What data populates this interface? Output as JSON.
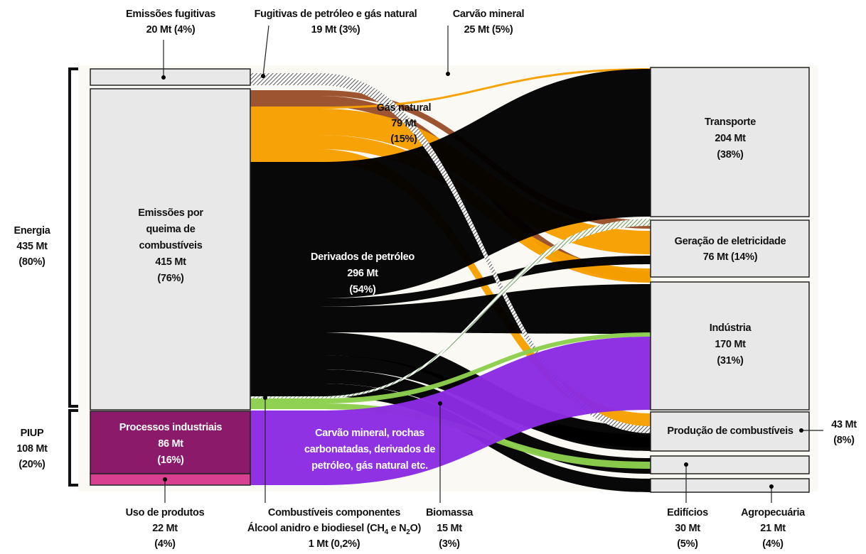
{
  "groups": {
    "energia": [
      "Energia",
      "435 Mt",
      "(80%)"
    ],
    "piup": [
      "PIUP",
      "108 Mt",
      "(20%)"
    ]
  },
  "sources": {
    "emissoes_fugitivas": [
      "Emissões fugitivas",
      "20 Mt  (4%)"
    ],
    "queima": [
      "Emissões por",
      "queima de",
      "combustíveis",
      "415 Mt",
      "(76%)"
    ],
    "processos": [
      "Processos industriais",
      "86 Mt",
      "(16%)"
    ],
    "uso_produtos": [
      "Uso de produtos",
      "22 Mt",
      "(4%)"
    ]
  },
  "fuels": {
    "fugitivas_petroleo": [
      "Fugitivas de petróleo e gás natural",
      "19 Mt (3%)"
    ],
    "carvao": [
      "Carvão mineral",
      "25 Mt (5%)"
    ],
    "gas": [
      "Gás natural",
      "79 Mt",
      "(15%)"
    ],
    "derivados": [
      "Derivados de petróleo",
      "296 Mt",
      "(54%)"
    ],
    "componentes": [
      "Combustíveis componentes",
      [
        "Álcool anidro e biodiesel (CH",
        "4",
        " e N",
        "2",
        "O)"
      ],
      "1 Mt (0,2%)"
    ],
    "biomassa": [
      "Biomassa",
      "15 Mt",
      "(3%)"
    ],
    "processos_fontes": [
      "Carvão mineral, rochas",
      "carbonatadas, derivados de",
      "petróleo, gás natural etc."
    ]
  },
  "sectors": {
    "transporte": [
      "Transporte",
      "204 Mt",
      "(38%)"
    ],
    "geracao": [
      "Geração de eletricidade",
      "76 Mt (14%)"
    ],
    "industria": [
      "Indústria",
      "170 Mt",
      "(31%)"
    ],
    "producao": [
      "Produção de combustíveis"
    ],
    "producao_valor": [
      "43 Mt",
      "(8%)"
    ],
    "edificios": [
      "Edifícios",
      "30 Mt",
      "(5%)"
    ],
    "agropecuaria": [
      "Agropecuária",
      "21 Mt",
      "(4%)"
    ]
  }
}
